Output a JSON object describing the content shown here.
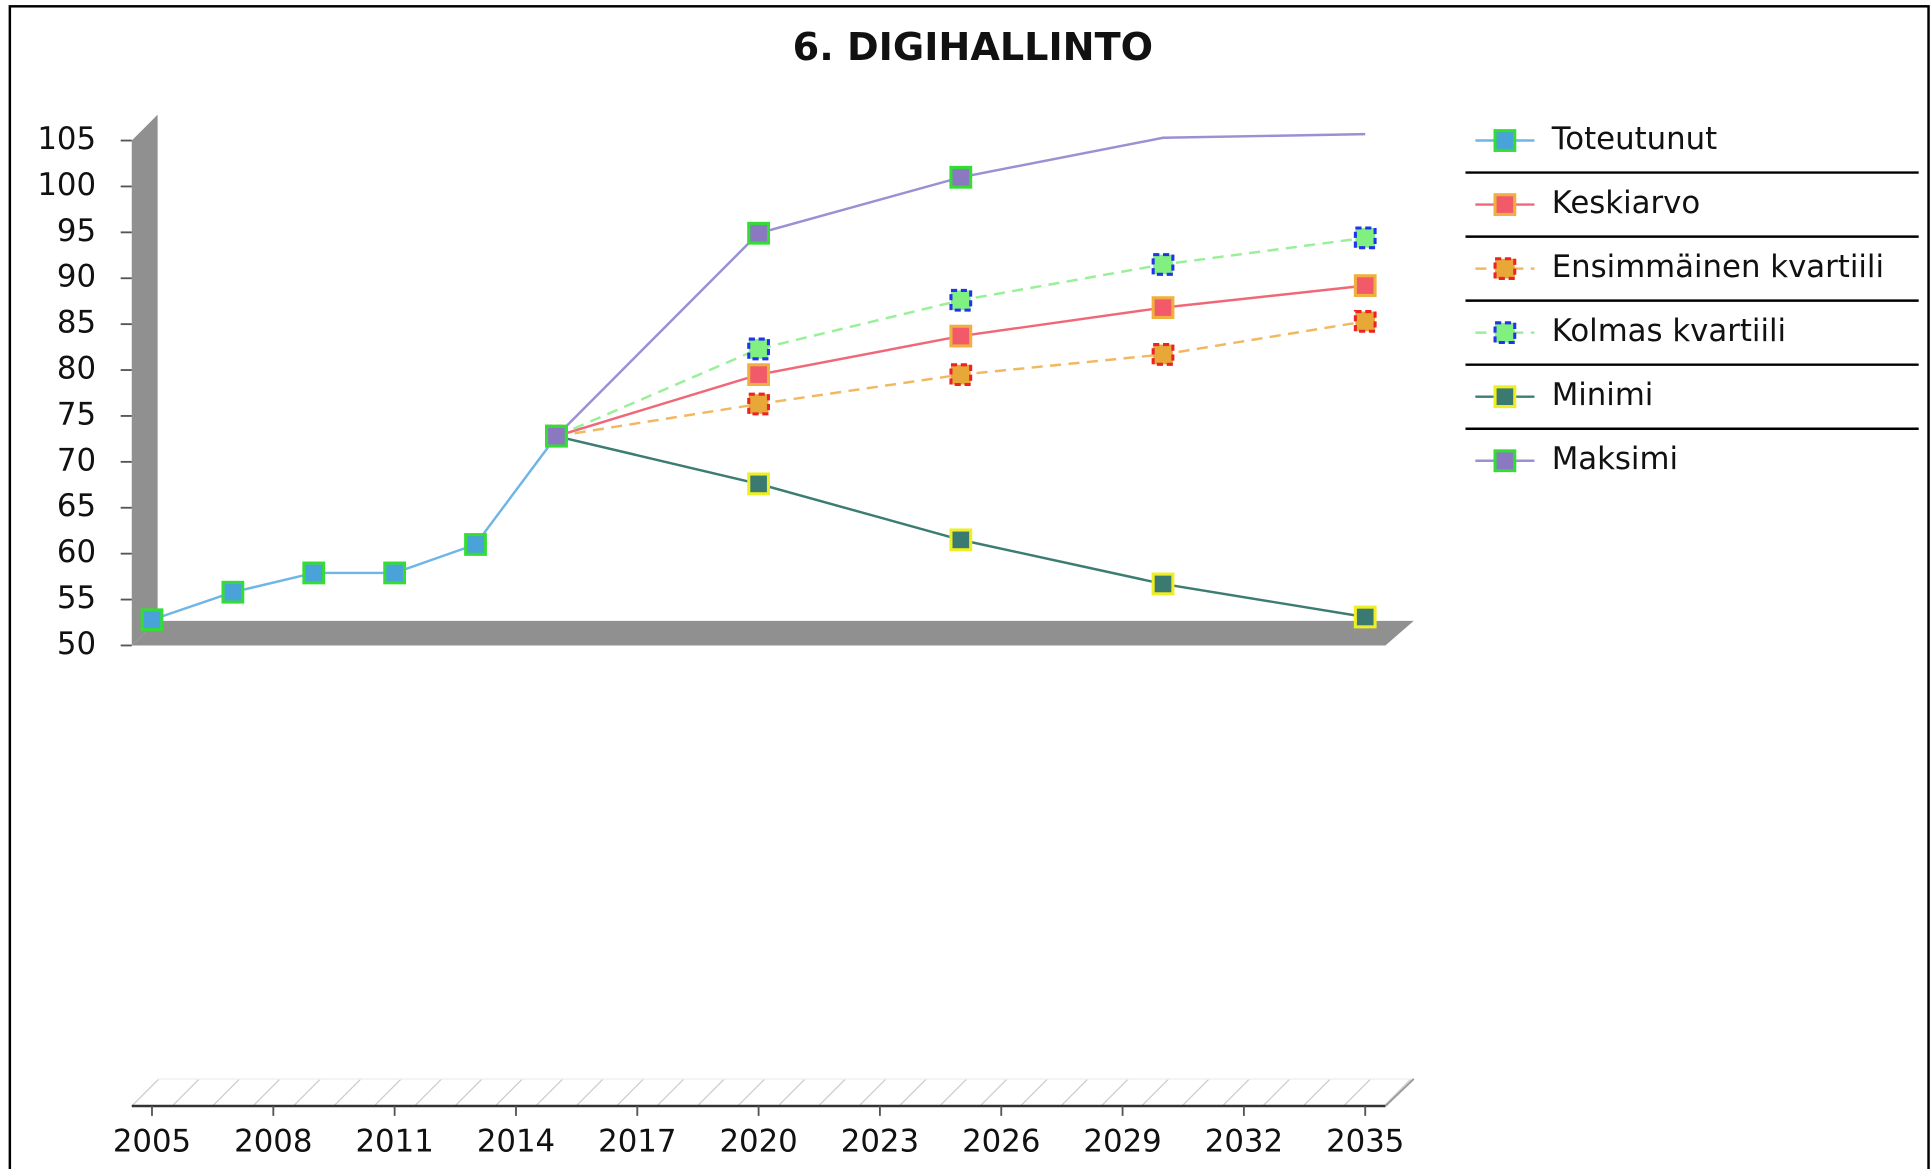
{
  "chart_data": {
    "type": "line",
    "title": "6. DIGIHALLINTO",
    "x": [
      2005,
      2007,
      2009,
      2011,
      2013,
      2015,
      2020,
      2025,
      2030,
      2035
    ],
    "xlim": [
      2004.5,
      2035.5
    ],
    "xticks": [
      2005,
      2008,
      2011,
      2014,
      2017,
      2020,
      2023,
      2026,
      2029,
      2032,
      2035
    ],
    "ylim": [
      50,
      105
    ],
    "yticks": [
      50,
      55,
      60,
      65,
      70,
      75,
      80,
      85,
      90,
      95,
      100,
      105
    ],
    "legend": "right",
    "series": [
      {
        "name": "Toteutunut",
        "color": "#6fb6e6",
        "marker_fill": "#4aa3d8",
        "marker_edge": "#33dd33",
        "dashed": false,
        "values": [
          52.8,
          55.8,
          57.9,
          57.9,
          61,
          72.8,
          null,
          null,
          null,
          null
        ]
      },
      {
        "name": "Keskiarvo",
        "color": "#f06878",
        "marker_fill": "#f25a6a",
        "marker_edge": "#f0b040",
        "dashed": false,
        "values": [
          null,
          null,
          null,
          null,
          null,
          72.8,
          79.5,
          83.7,
          86.8,
          89.2
        ]
      },
      {
        "name": "Ensimmäinen kvartiili",
        "color": "#f2b860",
        "marker_fill": "#e8a838",
        "marker_edge": "#ee2222",
        "dashed": true,
        "values": [
          null,
          null,
          null,
          null,
          null,
          72.8,
          76.3,
          79.5,
          81.7,
          85.3
        ]
      },
      {
        "name": "Kolmas kvartiili",
        "color": "#98f098",
        "marker_fill": "#80f080",
        "marker_edge": "#2233ee",
        "dashed": true,
        "values": [
          null,
          null,
          null,
          null,
          null,
          72.8,
          82.3,
          87.6,
          91.5,
          94.4
        ]
      },
      {
        "name": "Minimi",
        "color": "#3c7c72",
        "marker_fill": "#3a7a70",
        "marker_edge": "#eeee22",
        "dashed": false,
        "values": [
          null,
          null,
          null,
          null,
          null,
          72.8,
          67.6,
          61.5,
          56.7,
          53.1
        ]
      },
      {
        "name": "Maksimi",
        "color": "#9a90d2",
        "marker_fill": "#8a78c0",
        "marker_edge": "#33dd33",
        "dashed": false,
        "values": [
          null,
          null,
          null,
          null,
          null,
          72.8,
          94.9,
          101,
          105.3,
          105.7
        ]
      }
    ]
  }
}
